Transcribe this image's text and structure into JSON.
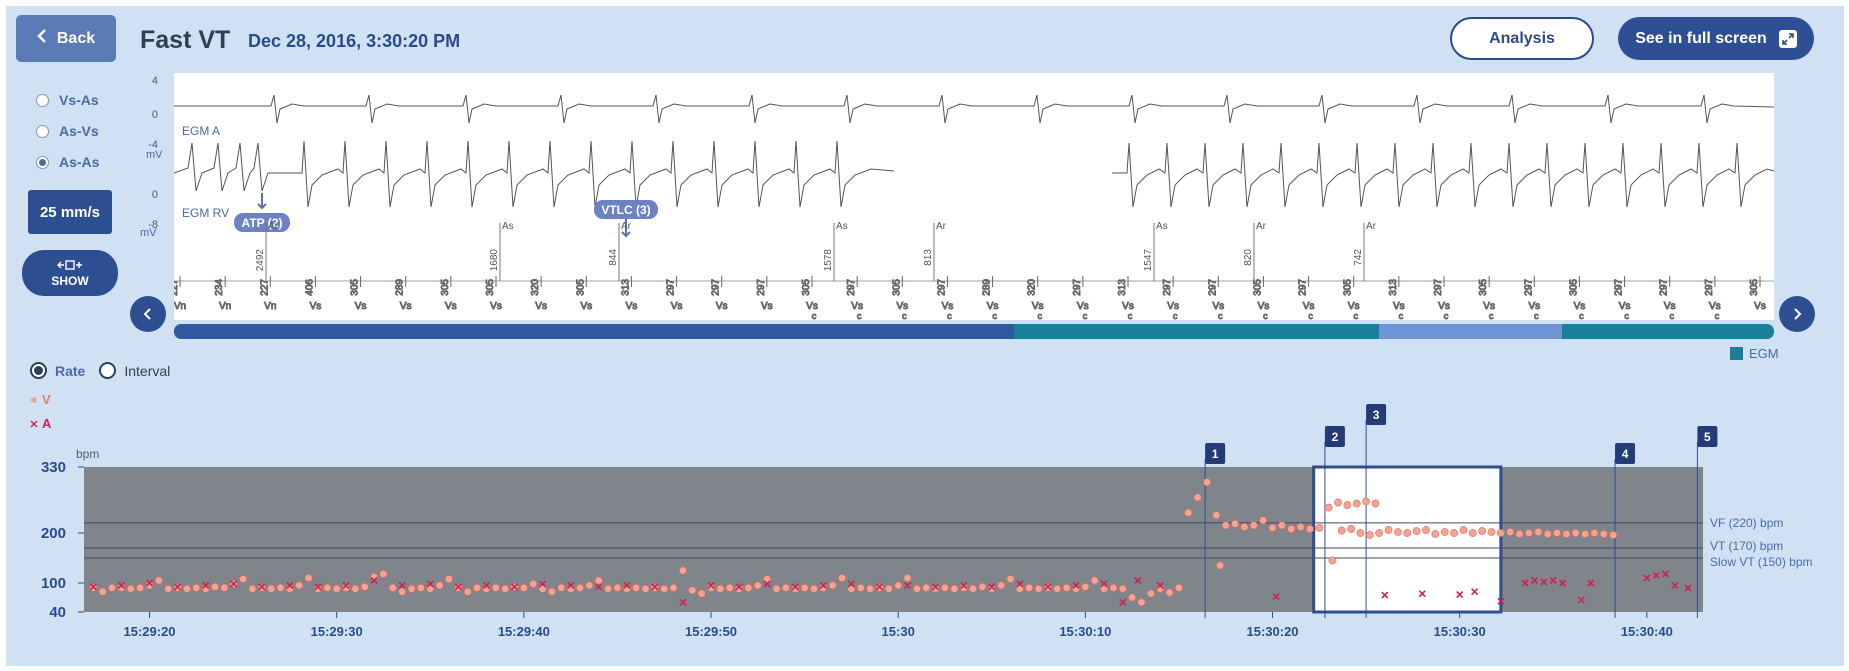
{
  "header": {
    "back_label": "Back",
    "title": "Fast VT",
    "datetime": "Dec 28, 2016, 3:30:20 PM",
    "analysis_label": "Analysis",
    "fullscreen_label": "See in full screen"
  },
  "sidebar": {
    "modes": [
      "Vs-As",
      "As-Vs",
      "As-As"
    ],
    "selected_mode": "As-As",
    "speed_label": "25 mm/s",
    "show_label": "SHOW"
  },
  "egm": {
    "channel_a": "EGM A",
    "channel_rv": "EGM RV",
    "a_ticks": [
      "4",
      "0",
      "-4"
    ],
    "rv_ticks": [
      "0",
      "-8"
    ],
    "unit": "mV",
    "annotations": [
      "ATP (2)",
      "VTLC (3)"
    ],
    "atrial_markers": [
      {
        "value": "2492",
        "tag": "Ar"
      },
      {
        "value": "1680",
        "tag": "As"
      },
      {
        "value": "844",
        "tag": "Ar"
      },
      {
        "value": "1578",
        "tag": "As"
      },
      {
        "value": "813",
        "tag": "Ar"
      },
      {
        "value": "1547",
        "tag": "As"
      },
      {
        "value": "820",
        "tag": "Ar"
      },
      {
        "value": "742",
        "tag": "Ar"
      }
    ],
    "ventricular_markers": [
      {
        "value": "227",
        "tag": "Vn"
      },
      {
        "value": "234",
        "tag": "Vn"
      },
      {
        "value": "227",
        "tag": "Vn"
      },
      {
        "value": "406",
        "tag": "Vs"
      },
      {
        "value": "305",
        "tag": "Vs"
      },
      {
        "value": "289",
        "tag": "Vs"
      },
      {
        "value": "305",
        "tag": "Vs"
      },
      {
        "value": "305",
        "tag": "Vs"
      },
      {
        "value": "320",
        "tag": "Vs"
      },
      {
        "value": "305",
        "tag": "Vs"
      },
      {
        "value": "313",
        "tag": "Vs"
      },
      {
        "value": "297",
        "tag": "Vs"
      },
      {
        "value": "297",
        "tag": "Vs"
      },
      {
        "value": "297",
        "tag": "Vs"
      },
      {
        "value": "305",
        "tag": "Vs c"
      },
      {
        "value": "297",
        "tag": "Vs c"
      },
      {
        "value": "305",
        "tag": "Vs c"
      },
      {
        "value": "297",
        "tag": "Vs c"
      },
      {
        "value": "289",
        "tag": "Vs c"
      },
      {
        "value": "320",
        "tag": "Vs c"
      },
      {
        "value": "297",
        "tag": "Vs c"
      },
      {
        "value": "313",
        "tag": "Vs c"
      },
      {
        "value": "297",
        "tag": "Vs c"
      },
      {
        "value": "297",
        "tag": "Vs c"
      },
      {
        "value": "305",
        "tag": "Vs c"
      },
      {
        "value": "297",
        "tag": "Vs c"
      },
      {
        "value": "305",
        "tag": "Vs c"
      },
      {
        "value": "313",
        "tag": "Vs c"
      },
      {
        "value": "297",
        "tag": "Vs c"
      },
      {
        "value": "305",
        "tag": "Vs c"
      },
      {
        "value": "297",
        "tag": "Vs c"
      },
      {
        "value": "305",
        "tag": "Vs c"
      },
      {
        "value": "297",
        "tag": "Vs c"
      },
      {
        "value": "297",
        "tag": "Vs c"
      },
      {
        "value": "297",
        "tag": "Vs c"
      },
      {
        "value": "305",
        "tag": "Vs"
      }
    ],
    "legend_label": "EGM"
  },
  "rate_panel": {
    "options": [
      "Rate",
      "Interval"
    ],
    "selected": "Rate",
    "legend_v": "V",
    "legend_a": "A"
  },
  "chart_data": {
    "type": "scatter",
    "ylabel": "bpm",
    "yticks": [
      40,
      100,
      200,
      330
    ],
    "ylim": [
      40,
      330
    ],
    "x_tick_labels": [
      "15:29:20",
      "15:29:30",
      "15:29:40",
      "15:29:50",
      "15:30",
      "15:30:10",
      "15:30:20",
      "15:30:30",
      "15:30:40"
    ],
    "x_tick_seconds": [
      -60,
      -50,
      -40,
      -30,
      -20,
      -10,
      0,
      10,
      20
    ],
    "xlim_seconds": [
      -63.5,
      23.0
    ],
    "zones": [
      {
        "label": "VF (220) bpm",
        "bpm": 220
      },
      {
        "label": "VT (170) bpm",
        "bpm": 170
      },
      {
        "label": "Slow VT (150) bpm",
        "bpm": 150
      }
    ],
    "events": [
      {
        "label": "1",
        "t": -3.6
      },
      {
        "label": "2",
        "t": 2.8
      },
      {
        "label": "3",
        "t": 5.0
      },
      {
        "label": "4",
        "t": 18.3
      },
      {
        "label": "5",
        "t": 22.7
      }
    ],
    "window": [
      2.2,
      12.2
    ],
    "series": [
      {
        "name": "V",
        "color": "#f4a392",
        "points": [
          [
            -63.0,
            90
          ],
          [
            -62.5,
            82
          ],
          [
            -62.0,
            90
          ],
          [
            -61.5,
            90
          ],
          [
            -61.0,
            88
          ],
          [
            -60.5,
            90
          ],
          [
            -60.0,
            95
          ],
          [
            -59.5,
            105
          ],
          [
            -59.0,
            88
          ],
          [
            -58.5,
            90
          ],
          [
            -58.0,
            88
          ],
          [
            -57.5,
            90
          ],
          [
            -57.0,
            88
          ],
          [
            -56.5,
            92
          ],
          [
            -56.0,
            90
          ],
          [
            -55.5,
            98
          ],
          [
            -55.0,
            108
          ],
          [
            -54.5,
            88
          ],
          [
            -54.0,
            90
          ],
          [
            -53.5,
            88
          ],
          [
            -53.0,
            90
          ],
          [
            -52.5,
            88
          ],
          [
            -52.0,
            95
          ],
          [
            -51.5,
            110
          ],
          [
            -51.0,
            88
          ],
          [
            -50.5,
            90
          ],
          [
            -50.0,
            88
          ],
          [
            -49.5,
            90
          ],
          [
            -49.0,
            88
          ],
          [
            -48.5,
            92
          ],
          [
            -48.0,
            112
          ],
          [
            -47.5,
            118
          ],
          [
            -47.0,
            90
          ],
          [
            -46.5,
            82
          ],
          [
            -46.0,
            88
          ],
          [
            -45.5,
            90
          ],
          [
            -45.0,
            88
          ],
          [
            -44.5,
            95
          ],
          [
            -44.0,
            108
          ],
          [
            -43.5,
            90
          ],
          [
            -43.0,
            82
          ],
          [
            -42.5,
            90
          ],
          [
            -42.0,
            88
          ],
          [
            -41.5,
            90
          ],
          [
            -41.0,
            88
          ],
          [
            -40.5,
            92
          ],
          [
            -40.0,
            90
          ],
          [
            -39.5,
            98
          ],
          [
            -39.0,
            88
          ],
          [
            -38.5,
            82
          ],
          [
            -38.0,
            90
          ],
          [
            -37.5,
            88
          ],
          [
            -37.0,
            90
          ],
          [
            -36.5,
            95
          ],
          [
            -36.0,
            105
          ],
          [
            -35.5,
            88
          ],
          [
            -35.0,
            90
          ],
          [
            -34.5,
            88
          ],
          [
            -34.0,
            90
          ],
          [
            -33.5,
            88
          ],
          [
            -33.0,
            90
          ],
          [
            -32.5,
            88
          ],
          [
            -32.0,
            90
          ],
          [
            -31.5,
            125
          ],
          [
            -31.0,
            85
          ],
          [
            -30.5,
            78
          ],
          [
            -30.0,
            90
          ],
          [
            -29.5,
            88
          ],
          [
            -29.0,
            90
          ],
          [
            -28.5,
            88
          ],
          [
            -28.0,
            90
          ],
          [
            -27.5,
            95
          ],
          [
            -27.0,
            108
          ],
          [
            -26.5,
            88
          ],
          [
            -26.0,
            90
          ],
          [
            -25.5,
            88
          ],
          [
            -25.0,
            90
          ],
          [
            -24.5,
            88
          ],
          [
            -24.0,
            90
          ],
          [
            -23.5,
            95
          ],
          [
            -23.0,
            110
          ],
          [
            -22.5,
            88
          ],
          [
            -22.0,
            90
          ],
          [
            -21.5,
            88
          ],
          [
            -21.0,
            90
          ],
          [
            -20.5,
            88
          ],
          [
            -20.0,
            95
          ],
          [
            -19.5,
            110
          ],
          [
            -19.0,
            88
          ],
          [
            -18.5,
            90
          ],
          [
            -18.0,
            88
          ],
          [
            -17.5,
            90
          ],
          [
            -17.0,
            88
          ],
          [
            -16.5,
            90
          ],
          [
            -16.0,
            88
          ],
          [
            -15.5,
            92
          ],
          [
            -15.0,
            88
          ],
          [
            -14.5,
            95
          ],
          [
            -14.0,
            108
          ],
          [
            -13.5,
            88
          ],
          [
            -13.0,
            90
          ],
          [
            -12.5,
            88
          ],
          [
            -12.0,
            90
          ],
          [
            -11.5,
            88
          ],
          [
            -11.0,
            90
          ],
          [
            -10.5,
            88
          ],
          [
            -10.0,
            92
          ],
          [
            -9.5,
            105
          ],
          [
            -9.0,
            88
          ],
          [
            -8.5,
            90
          ],
          [
            -8.0,
            88
          ],
          [
            -7.5,
            70
          ],
          [
            -7.0,
            60
          ],
          [
            -6.5,
            78
          ],
          [
            -6.0,
            88
          ],
          [
            -5.5,
            80
          ],
          [
            -5.0,
            90
          ],
          [
            -4.5,
            240
          ],
          [
            -4.0,
            270
          ],
          [
            -3.5,
            300
          ],
          [
            -3.0,
            235
          ],
          [
            -2.5,
            215
          ],
          [
            -2.0,
            218
          ],
          [
            -1.5,
            212
          ],
          [
            -1.0,
            215
          ],
          [
            -0.5,
            225
          ],
          [
            0.0,
            210
          ],
          [
            0.5,
            215
          ],
          [
            1.0,
            208
          ],
          [
            1.5,
            212
          ],
          [
            2.0,
            208
          ],
          [
            2.5,
            210
          ],
          [
            3.0,
            250
          ],
          [
            3.5,
            260
          ],
          [
            4.0,
            255
          ],
          [
            4.5,
            258
          ],
          [
            5.0,
            262
          ],
          [
            5.5,
            258
          ],
          [
            -2.8,
            135
          ],
          [
            3.2,
            145
          ],
          [
            3.7,
            205
          ],
          [
            4.2,
            208
          ],
          [
            4.7,
            200
          ],
          [
            5.2,
            196
          ],
          [
            5.7,
            200
          ],
          [
            6.2,
            206
          ],
          [
            6.7,
            202
          ],
          [
            7.2,
            200
          ],
          [
            7.7,
            204
          ],
          [
            8.2,
            206
          ],
          [
            8.7,
            198
          ],
          [
            9.2,
            202
          ],
          [
            9.7,
            200
          ],
          [
            10.2,
            206
          ],
          [
            10.7,
            200
          ],
          [
            11.2,
            204
          ],
          [
            11.7,
            202
          ],
          [
            12.2,
            200
          ],
          [
            12.7,
            202
          ],
          [
            13.2,
            198
          ],
          [
            13.7,
            200
          ],
          [
            14.2,
            202
          ],
          [
            14.7,
            198
          ],
          [
            15.2,
            200
          ],
          [
            15.7,
            198
          ],
          [
            16.2,
            200
          ],
          [
            16.7,
            198
          ],
          [
            17.2,
            200
          ],
          [
            17.7,
            198
          ],
          [
            18.2,
            196
          ]
        ]
      },
      {
        "name": "A",
        "color": "#cc2255",
        "points": [
          [
            -63.0,
            92
          ],
          [
            -61.5,
            95
          ],
          [
            -60.0,
            100
          ],
          [
            -58.5,
            92
          ],
          [
            -57.0,
            95
          ],
          [
            -55.5,
            98
          ],
          [
            -54.0,
            92
          ],
          [
            -52.5,
            95
          ],
          [
            -51.0,
            92
          ],
          [
            -49.5,
            95
          ],
          [
            -48.0,
            105
          ],
          [
            -46.5,
            95
          ],
          [
            -45.0,
            98
          ],
          [
            -43.5,
            92
          ],
          [
            -42.0,
            95
          ],
          [
            -40.5,
            92
          ],
          [
            -39.0,
            98
          ],
          [
            -37.5,
            95
          ],
          [
            -36.0,
            92
          ],
          [
            -34.5,
            95
          ],
          [
            -33.0,
            92
          ],
          [
            -31.5,
            60
          ],
          [
            -30.0,
            95
          ],
          [
            -28.5,
            92
          ],
          [
            -27.0,
            98
          ],
          [
            -25.5,
            92
          ],
          [
            -24.0,
            95
          ],
          [
            -22.5,
            98
          ],
          [
            -21.0,
            92
          ],
          [
            -19.5,
            95
          ],
          [
            -18.0,
            92
          ],
          [
            -16.5,
            95
          ],
          [
            -15.0,
            92
          ],
          [
            -13.5,
            98
          ],
          [
            -12.0,
            92
          ],
          [
            -10.5,
            95
          ],
          [
            -9.0,
            98
          ],
          [
            -8.0,
            60
          ],
          [
            -7.2,
            105
          ],
          [
            -6.0,
            95
          ],
          [
            0.2,
            72
          ],
          [
            6.0,
            75
          ],
          [
            8.0,
            78
          ],
          [
            10.0,
            76
          ],
          [
            10.8,
            82
          ],
          [
            12.2,
            62
          ],
          [
            13.5,
            100
          ],
          [
            14.0,
            105
          ],
          [
            14.5,
            102
          ],
          [
            15.0,
            105
          ],
          [
            15.5,
            100
          ],
          [
            16.5,
            65
          ],
          [
            17.0,
            100
          ],
          [
            20.0,
            110
          ],
          [
            20.5,
            115
          ],
          [
            21.0,
            118
          ],
          [
            21.5,
            95
          ],
          [
            22.2,
            90
          ]
        ]
      }
    ]
  }
}
